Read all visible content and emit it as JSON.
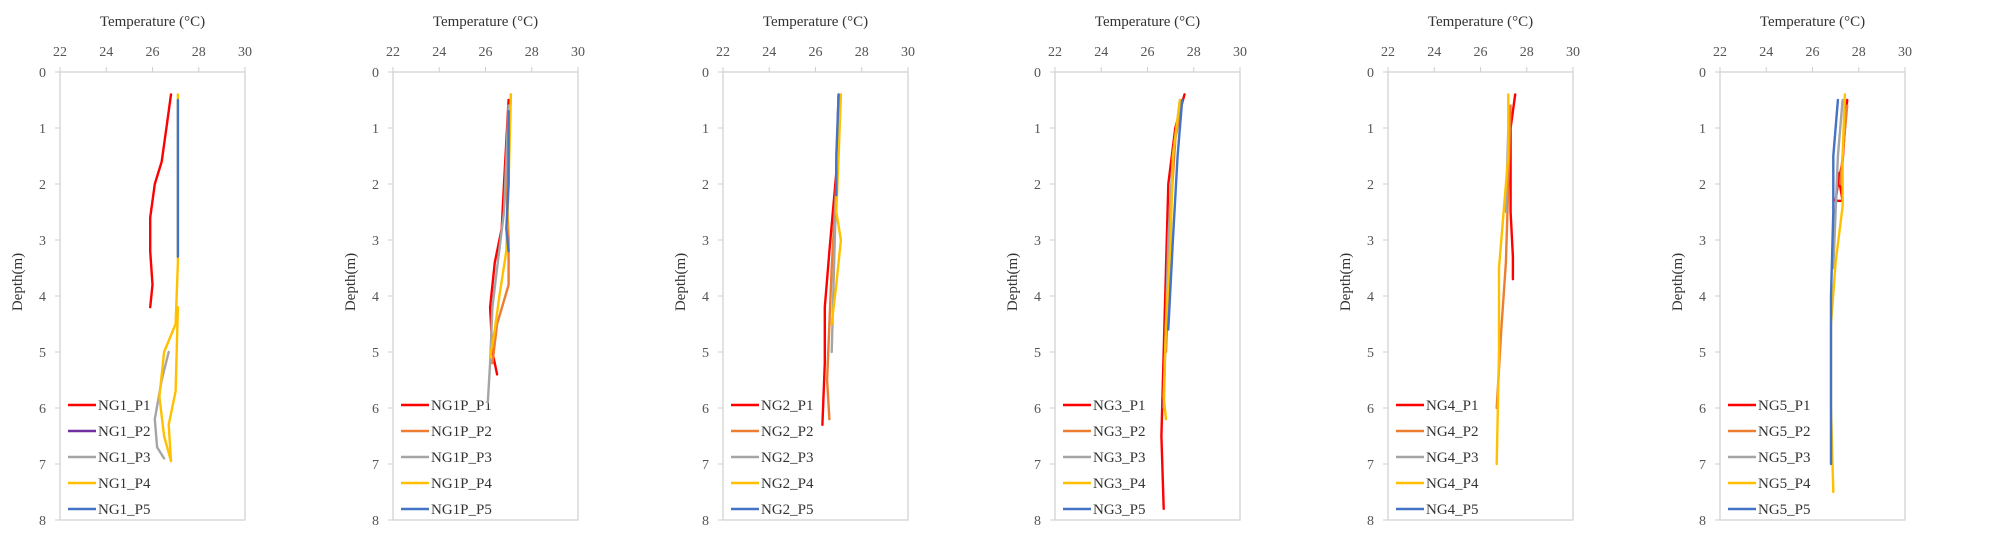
{
  "chart_data": [
    {
      "type": "line",
      "xlabel": "Temperature (°C)",
      "ylabel": "Depth(m)",
      "xlim": [
        22,
        30
      ],
      "ylim": [
        0,
        8
      ],
      "y_inverted": true,
      "xticks": [
        "22",
        "24",
        "26",
        "28",
        "30"
      ],
      "yticks": [
        "0",
        "1",
        "2",
        "3",
        "4",
        "5",
        "6",
        "7",
        "8"
      ],
      "legend_position": "bottom-left",
      "series": [
        {
          "name": "NG1_P1",
          "color": "#ff0000",
          "x": [
            26.8,
            26.6,
            26.4,
            26.1,
            25.9,
            25.9,
            26.0,
            25.9
          ],
          "y": [
            0.4,
            1.0,
            1.6,
            2.0,
            2.6,
            3.2,
            3.8,
            4.2
          ]
        },
        {
          "name": "NG1_P2",
          "color": "#7030a0",
          "x": [],
          "y": []
        },
        {
          "name": "NG1_P3",
          "color": "#a5a5a5",
          "x": [
            26.7,
            26.4,
            26.1,
            26.2,
            26.5
          ],
          "y": [
            5.0,
            5.5,
            6.2,
            6.7,
            6.9
          ]
        },
        {
          "name": "NG1_P4",
          "color": "#ffc000",
          "x": [
            27.1,
            27.1,
            27.1,
            27.0,
            26.5,
            26.3,
            26.5,
            26.8,
            26.7,
            27.0,
            27.1
          ],
          "y": [
            0.4,
            2.0,
            3.4,
            4.5,
            5.0,
            5.8,
            6.5,
            6.95,
            6.3,
            5.7,
            4.2
          ]
        },
        {
          "name": "NG1_P5",
          "color": "#4472c4",
          "x": [
            27.1,
            27.1,
            27.1
          ],
          "y": [
            0.5,
            1.5,
            3.3
          ]
        }
      ]
    },
    {
      "type": "line",
      "xlabel": "Temperature (°C)",
      "ylabel": "Depth(m)",
      "xlim": [
        22,
        30
      ],
      "ylim": [
        0,
        8
      ],
      "y_inverted": true,
      "xticks": [
        "22",
        "24",
        "26",
        "28",
        "30"
      ],
      "yticks": [
        "0",
        "1",
        "2",
        "3",
        "4",
        "5",
        "6",
        "7",
        "8"
      ],
      "legend_position": "bottom-left",
      "series": [
        {
          "name": "NG1P_P1",
          "color": "#ff0000",
          "x": [
            27.0,
            26.8,
            26.7,
            26.4,
            26.2,
            26.3,
            26.5
          ],
          "y": [
            0.5,
            2.0,
            2.8,
            3.4,
            4.2,
            5.0,
            5.4
          ]
        },
        {
          "name": "NG1P_P2",
          "color": "#ed7d31",
          "x": [
            27.1,
            26.9,
            27.0,
            27.0,
            26.5,
            26.3
          ],
          "y": [
            0.4,
            2.0,
            3.0,
            3.8,
            4.5,
            5.2
          ]
        },
        {
          "name": "NG1P_P3",
          "color": "#a5a5a5",
          "x": [
            27.0,
            26.8,
            26.5,
            26.3,
            26.2,
            26.1
          ],
          "y": [
            0.6,
            2.5,
            3.5,
            4.2,
            5.2,
            5.9
          ]
        },
        {
          "name": "NG1P_P4",
          "color": "#ffc000",
          "x": [
            27.1,
            27.0,
            26.9,
            26.6,
            26.4,
            26.2
          ],
          "y": [
            0.4,
            2.0,
            3.2,
            4.0,
            4.6,
            5.1
          ]
        },
        {
          "name": "NG1P_P5",
          "color": "#4472c4",
          "x": [
            27.0,
            27.0,
            26.9,
            27.0
          ],
          "y": [
            0.7,
            2.0,
            2.8,
            3.2
          ]
        }
      ]
    },
    {
      "type": "line",
      "xlabel": "Temperature (°C)",
      "ylabel": "Depth(m)",
      "xlim": [
        22,
        30
      ],
      "ylim": [
        0,
        8
      ],
      "y_inverted": true,
      "xticks": [
        "22",
        "24",
        "26",
        "28",
        "30"
      ],
      "yticks": [
        "0",
        "1",
        "2",
        "3",
        "4",
        "5",
        "6",
        "7",
        "8"
      ],
      "legend_position": "bottom-left",
      "series": [
        {
          "name": "NG2_P1",
          "color": "#ff0000",
          "x": [
            27.0,
            26.9,
            26.6,
            26.4,
            26.4,
            26.3
          ],
          "y": [
            0.4,
            1.8,
            3.2,
            4.2,
            5.2,
            6.3
          ]
        },
        {
          "name": "NG2_P2",
          "color": "#ed7d31",
          "x": [
            27.0,
            26.9,
            26.7,
            26.6,
            26.5,
            26.6
          ],
          "y": [
            0.5,
            2.0,
            3.5,
            4.5,
            5.5,
            6.2
          ]
        },
        {
          "name": "NG2_P3",
          "color": "#a5a5a5",
          "x": [
            27.0,
            26.9,
            26.8,
            26.7
          ],
          "y": [
            0.5,
            2.0,
            3.5,
            5.0
          ]
        },
        {
          "name": "NG2_P4",
          "color": "#ffc000",
          "x": [
            27.1,
            27.0,
            26.9,
            27.1,
            26.9,
            26.7
          ],
          "y": [
            0.4,
            1.5,
            2.5,
            3.0,
            3.8,
            4.5
          ]
        },
        {
          "name": "NG2_P5",
          "color": "#4472c4",
          "x": [
            27.0,
            26.9,
            26.9
          ],
          "y": [
            0.4,
            1.5,
            2.2
          ]
        }
      ]
    },
    {
      "type": "line",
      "xlabel": "Temperature (°C)",
      "ylabel": "Depth(m)",
      "xlim": [
        22,
        30
      ],
      "ylim": [
        0,
        8
      ],
      "y_inverted": true,
      "xticks": [
        "22",
        "24",
        "26",
        "28",
        "30"
      ],
      "yticks": [
        "0",
        "1",
        "2",
        "3",
        "4",
        "5",
        "6",
        "7",
        "8"
      ],
      "legend_position": "bottom-left",
      "series": [
        {
          "name": "NG3_P1",
          "color": "#ff0000",
          "x": [
            27.6,
            27.2,
            26.9,
            26.8,
            26.7,
            26.6,
            26.7
          ],
          "y": [
            0.4,
            1.0,
            2.0,
            3.5,
            5.0,
            6.5,
            7.8
          ]
        },
        {
          "name": "NG3_P2",
          "color": "#ed7d31",
          "x": [
            27.5,
            27.2,
            27.0,
            26.9,
            26.8
          ],
          "y": [
            0.5,
            1.2,
            2.5,
            4.0,
            5.0
          ]
        },
        {
          "name": "NG3_P3",
          "color": "#a5a5a5",
          "x": [
            27.4,
            27.1,
            26.9,
            26.8,
            26.7
          ],
          "y": [
            0.5,
            1.5,
            3.0,
            4.5,
            6.0
          ]
        },
        {
          "name": "NG3_P4",
          "color": "#ffc000",
          "x": [
            27.4,
            27.1,
            27.0,
            26.8,
            26.7,
            26.8
          ],
          "y": [
            0.5,
            1.5,
            3.0,
            4.5,
            5.8,
            6.2
          ]
        },
        {
          "name": "NG3_P5",
          "color": "#4472c4",
          "x": [
            27.5,
            27.3,
            27.1,
            26.9
          ],
          "y": [
            0.5,
            1.5,
            3.0,
            4.6
          ]
        }
      ]
    },
    {
      "type": "line",
      "xlabel": "Temperature (°C)",
      "ylabel": "Depth(m)",
      "xlim": [
        22,
        30
      ],
      "ylim": [
        0,
        8
      ],
      "y_inverted": true,
      "xticks": [
        "22",
        "24",
        "26",
        "28",
        "30"
      ],
      "yticks": [
        "0",
        "1",
        "2",
        "3",
        "4",
        "5",
        "6",
        "7",
        "8"
      ],
      "legend_position": "bottom-left",
      "series": [
        {
          "name": "NG4_P1",
          "color": "#ff0000",
          "x": [
            27.5,
            27.3,
            27.3,
            27.4,
            27.4
          ],
          "y": [
            0.4,
            1.0,
            2.5,
            3.3,
            3.7
          ]
        },
        {
          "name": "NG4_P2",
          "color": "#ed7d31",
          "x": [
            27.3,
            27.2,
            27.1,
            26.9,
            26.7
          ],
          "y": [
            0.6,
            2.0,
            3.4,
            4.6,
            6.0
          ]
        },
        {
          "name": "NG4_P3",
          "color": "#a5a5a5",
          "x": [
            27.2,
            27.1
          ],
          "y": [
            1.0,
            2.5
          ]
        },
        {
          "name": "NG4_P4",
          "color": "#ffc000",
          "x": [
            27.2,
            27.2,
            27.0,
            26.8,
            26.8,
            26.7
          ],
          "y": [
            0.4,
            1.5,
            2.5,
            3.5,
            5.0,
            7.0
          ]
        },
        {
          "name": "NG4_P5",
          "color": "#4472c4",
          "x": [],
          "y": []
        }
      ]
    },
    {
      "type": "line",
      "xlabel": "Temperature (°C)",
      "ylabel": "Depth(m)",
      "xlim": [
        22,
        30
      ],
      "ylim": [
        0,
        8
      ],
      "y_inverted": true,
      "xticks": [
        "22",
        "24",
        "26",
        "28",
        "30"
      ],
      "yticks": [
        "0",
        "1",
        "2",
        "3",
        "4",
        "5",
        "6",
        "7",
        "8"
      ],
      "legend_position": "bottom-left",
      "series": [
        {
          "name": "NG5_P1",
          "color": "#ff0000",
          "x": [
            27.5,
            27.4,
            27.3,
            27.1,
            27.0,
            27.3,
            27.1
          ],
          "y": [
            0.5,
            1.0,
            1.6,
            2.0,
            2.3,
            2.3,
            1.8
          ]
        },
        {
          "name": "NG5_P2",
          "color": "#ed7d31",
          "x": [
            27.5,
            27.3,
            27.2
          ],
          "y": [
            0.6,
            1.5,
            2.0
          ]
        },
        {
          "name": "NG5_P3",
          "color": "#a5a5a5",
          "x": [
            27.3,
            27.1,
            27.0,
            26.9
          ],
          "y": [
            0.5,
            1.5,
            2.5,
            3.5
          ]
        },
        {
          "name": "NG5_P4",
          "color": "#ffc000",
          "x": [
            27.4,
            27.3,
            27.3,
            27.0,
            26.8,
            26.8,
            26.9
          ],
          "y": [
            0.4,
            1.5,
            2.4,
            3.4,
            4.5,
            6.0,
            7.5
          ]
        },
        {
          "name": "NG5_P5",
          "color": "#4472c4",
          "x": [
            27.1,
            26.9,
            26.9,
            26.8,
            26.8
          ],
          "y": [
            0.5,
            1.5,
            2.5,
            4.0,
            7.0
          ]
        }
      ]
    }
  ]
}
